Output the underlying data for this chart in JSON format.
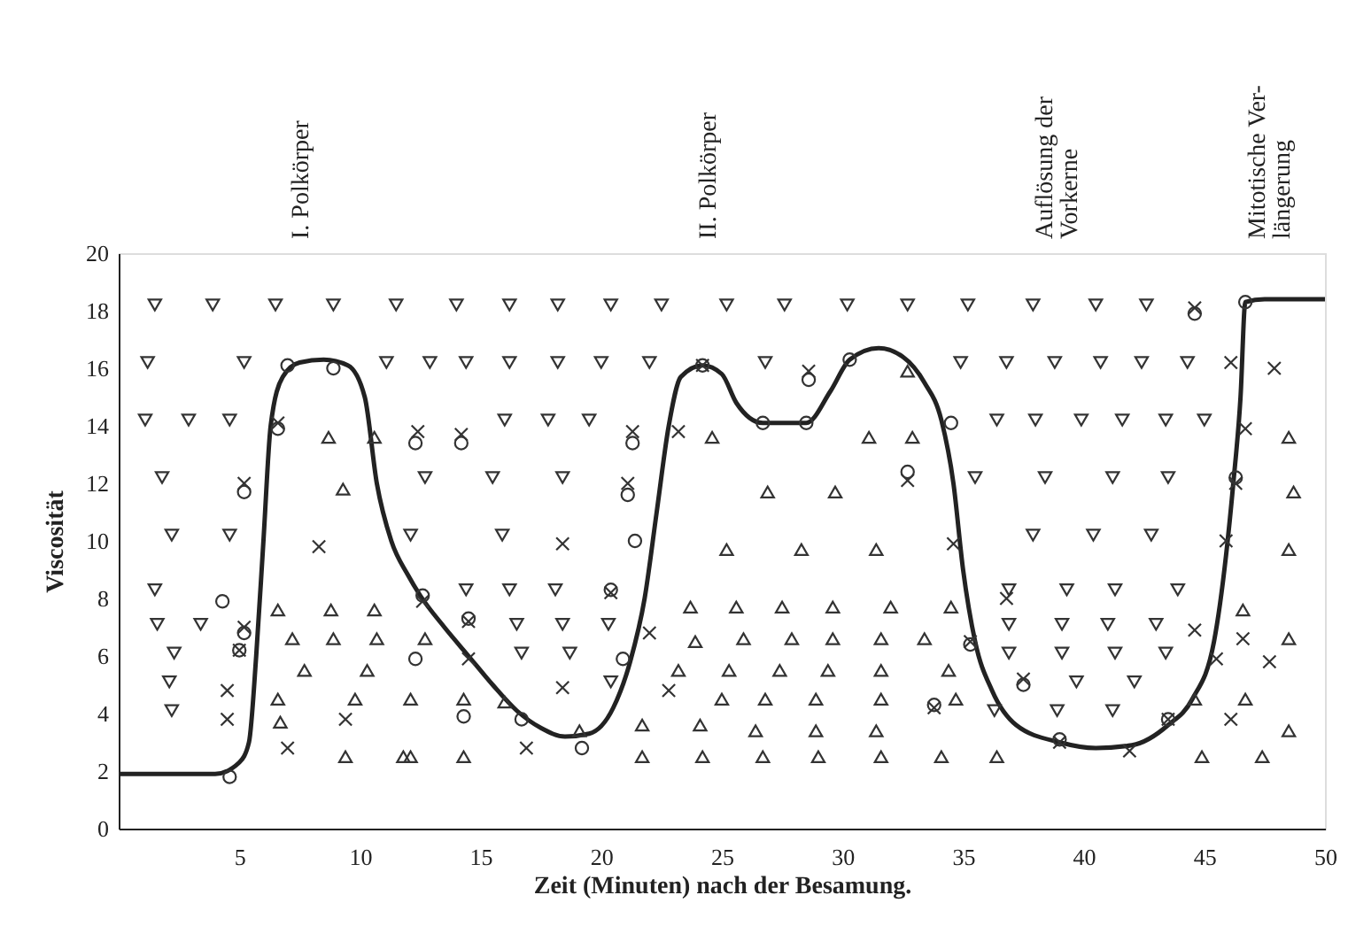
{
  "chart_data": {
    "type": "scatter",
    "xlabel": "Zeit (Minuten) nach der Besamung.",
    "ylabel": "Viscosität",
    "xlim": [
      0,
      50
    ],
    "xticks": [
      5,
      10,
      15,
      20,
      25,
      30,
      35,
      40,
      45,
      50
    ],
    "ylim": [
      0,
      20
    ],
    "yticks": [
      0,
      2,
      4,
      6,
      8,
      10,
      12,
      14,
      16,
      18,
      20
    ],
    "grid": false,
    "annotations": [
      "I. Polkörper",
      "II. Polkörper",
      "Auflösung der\nVorkerne",
      "Mitotische Ver-\nlängerung"
    ],
    "series": [
      {
        "type": "line",
        "color": "#222222",
        "marker": "none",
        "line_style": "solid",
        "x": [
          0,
          4,
          5,
          5.4,
          5.7,
          6.0,
          6.3,
          6.8,
          7.5,
          8.5,
          9.5,
          10.2,
          10.7,
          11.3,
          12.0,
          12.5,
          13.5,
          14.5,
          15.5,
          16.5,
          17.5,
          18.5,
          19.5,
          20.5,
          21.2,
          21.8,
          22.3,
          22.8,
          23.3,
          24.2,
          25,
          25.6,
          26.7,
          28.5,
          29.5,
          30.3,
          31.5,
          32.5,
          33.4,
          34.1,
          34.6,
          35,
          35.5,
          36.2,
          37.2,
          39,
          40.5,
          42,
          43.5,
          44.5,
          45.4,
          45.9,
          46.2,
          46.5,
          46.7,
          47.5,
          50
        ],
        "values": [
          1.9,
          1.9,
          2.3,
          3,
          6,
          10,
          14,
          15.7,
          16.2,
          16.3,
          16.1,
          15,
          12,
          10,
          8.8,
          8.1,
          7,
          6,
          5,
          4.1,
          3.5,
          3.2,
          3.3,
          4.2,
          5.8,
          8,
          11,
          14,
          15.7,
          16.1,
          15.8,
          14.8,
          14.1,
          14.1,
          15.2,
          16.3,
          16.7,
          16.4,
          15.5,
          14.2,
          12,
          9,
          6.5,
          4.8,
          3.6,
          3.0,
          2.8,
          2.9,
          3.6,
          4.5,
          6.5,
          9.5,
          12,
          15,
          18.3,
          18.4,
          18.4
        ]
      },
      {
        "color": "#333333",
        "marker": "triangle-down",
        "x": [
          1.5,
          3.9,
          6.5,
          8.9,
          11.5,
          14.0,
          16.2,
          18.2,
          20.4,
          22.5,
          25.2,
          27.6,
          30.2,
          32.7,
          35.2,
          37.9,
          40.5,
          42.6,
          1.2,
          5.2,
          11.1,
          12.9,
          14.4,
          16.2,
          18.2,
          20.0,
          22.0,
          26.8,
          34.9,
          36.8,
          38.8,
          40.7,
          42.4,
          44.3,
          1.1,
          2.9,
          4.6,
          16.0,
          17.8,
          19.5,
          36.4,
          38.0,
          39.9,
          41.6,
          43.4,
          45.0,
          1.8,
          12.7,
          15.5,
          18.4,
          35.5,
          38.4,
          41.2,
          43.5,
          2.2,
          4.6,
          12.1,
          15.9,
          37.9,
          40.4,
          42.8,
          1.5,
          14.4,
          16.2,
          18.1,
          36.9,
          39.3,
          41.3,
          43.9,
          1.6,
          3.4,
          16.5,
          18.4,
          20.3,
          36.9,
          39.1,
          41.0,
          43.0,
          2.3,
          16.7,
          18.7,
          36.9,
          39.1,
          41.3,
          43.4,
          2.1,
          20.4,
          39.7,
          42.1,
          2.2,
          36.3,
          38.9,
          41.2
        ],
        "values": [
          18.2,
          18.2,
          18.2,
          18.2,
          18.2,
          18.2,
          18.2,
          18.2,
          18.2,
          18.2,
          18.2,
          18.2,
          18.2,
          18.2,
          18.2,
          18.2,
          18.2,
          18.2,
          16.2,
          16.2,
          16.2,
          16.2,
          16.2,
          16.2,
          16.2,
          16.2,
          16.2,
          16.2,
          16.2,
          16.2,
          16.2,
          16.2,
          16.2,
          16.2,
          14.2,
          14.2,
          14.2,
          14.2,
          14.2,
          14.2,
          14.2,
          14.2,
          14.2,
          14.2,
          14.2,
          14.2,
          12.2,
          12.2,
          12.2,
          12.2,
          12.2,
          12.2,
          12.2,
          12.2,
          10.2,
          10.2,
          10.2,
          10.2,
          10.2,
          10.2,
          10.2,
          8.3,
          8.3,
          8.3,
          8.3,
          8.3,
          8.3,
          8.3,
          8.3,
          7.1,
          7.1,
          7.1,
          7.1,
          7.1,
          7.1,
          7.1,
          7.1,
          7.1,
          6.1,
          6.1,
          6.1,
          6.1,
          6.1,
          6.1,
          6.1,
          5.1,
          5.1,
          5.1,
          5.1,
          4.1,
          4.1,
          4.1,
          4.1
        ]
      },
      {
        "color": "#333333",
        "marker": "triangle",
        "x": [
          6.6,
          8.8,
          10.6,
          7.2,
          8.9,
          10.7,
          7.7,
          10.3,
          6.6,
          9.8,
          6.7,
          9.4,
          11.8,
          8.7,
          10.6,
          24.6,
          31.1,
          32.9,
          48.5,
          32.7,
          9.3,
          26.9,
          29.7,
          48.7,
          25.2,
          28.3,
          31.4,
          48.5,
          12.7,
          23.9,
          23.7,
          23.2,
          25.0,
          12.1,
          14.3,
          16.0,
          19.1,
          21.7,
          24.1,
          14.3,
          12.1,
          21.7,
          24.2,
          25.6,
          27.5,
          29.6,
          32.0,
          34.5,
          25.9,
          27.9,
          29.6,
          31.6,
          33.4,
          25.3,
          27.4,
          29.4,
          31.6,
          34.4,
          26.8,
          28.9,
          31.6,
          34.7,
          26.4,
          28.9,
          31.4,
          26.7,
          29.0,
          31.6,
          34.1,
          36.4,
          46.6,
          48.5,
          44.6,
          46.7,
          48.5,
          44.9,
          47.4
        ],
        "values": [
          7.6,
          7.6,
          7.6,
          6.6,
          6.6,
          6.6,
          5.5,
          5.5,
          4.5,
          4.5,
          3.7,
          2.5,
          2.5,
          13.6,
          13.6,
          13.6,
          13.6,
          13.6,
          13.6,
          15.9,
          11.8,
          11.7,
          11.7,
          11.7,
          9.7,
          9.7,
          9.7,
          9.7,
          6.6,
          6.5,
          7.7,
          5.5,
          4.5,
          4.5,
          4.5,
          4.4,
          3.4,
          3.6,
          3.6,
          2.5,
          2.5,
          2.5,
          2.5,
          7.7,
          7.7,
          7.7,
          7.7,
          7.7,
          6.6,
          6.6,
          6.6,
          6.6,
          6.6,
          5.5,
          5.5,
          5.5,
          5.5,
          5.5,
          4.5,
          4.5,
          4.5,
          4.5,
          3.4,
          3.4,
          3.4,
          2.5,
          2.5,
          2.5,
          2.5,
          2.5,
          7.6,
          6.6,
          4.5,
          4.5,
          3.4,
          2.5,
          2.5
        ]
      },
      {
        "color": "#333333",
        "marker": "cross",
        "x": [
          44.6,
          46.1,
          47.9,
          28.6,
          24.2,
          6.6,
          12.4,
          14.2,
          21.3,
          23.2,
          46.7,
          5.2,
          21.1,
          32.7,
          46.3,
          8.3,
          18.4,
          34.6,
          45.9,
          5.2,
          5.0,
          4.5,
          4.5,
          9.4,
          7.0,
          12.6,
          20.4,
          14.5,
          22.0,
          14.5,
          18.4,
          22.8,
          16.9,
          36.8,
          35.3,
          37.5,
          33.8,
          44.6,
          46.6,
          45.5,
          47.7,
          43.5,
          46.1,
          39.0,
          41.9
        ],
        "values": [
          18.1,
          16.2,
          16.0,
          15.9,
          16.1,
          14.1,
          13.8,
          13.7,
          13.8,
          13.8,
          13.9,
          12.0,
          12.0,
          12.1,
          12.0,
          9.8,
          9.9,
          9.9,
          10.0,
          7.0,
          6.2,
          4.8,
          3.8,
          3.8,
          2.8,
          7.9,
          8.2,
          7.2,
          6.8,
          5.9,
          4.9,
          4.8,
          2.8,
          8.0,
          6.5,
          5.2,
          4.2,
          6.9,
          6.6,
          5.9,
          5.8,
          3.8,
          3.8,
          3.0,
          2.7
        ]
      },
      {
        "color": "#333333",
        "marker": "circle",
        "x": [
          4.6,
          7.0,
          8.9,
          4.3,
          5.2,
          5.0,
          6.6,
          5.2,
          12.3,
          12.6,
          12.3,
          14.2,
          21.3,
          21.1,
          21.4,
          20.4,
          14.5,
          20.9,
          14.3,
          16.7,
          19.2,
          24.2,
          26.7,
          28.5,
          30.3,
          34.5,
          28.6,
          32.7,
          35.3,
          37.5,
          33.8,
          39.0,
          43.5,
          46.7,
          44.6,
          46.3
        ],
        "values": [
          1.8,
          16.1,
          16.0,
          7.9,
          6.8,
          6.2,
          13.9,
          11.7,
          5.9,
          8.1,
          13.4,
          13.4,
          13.4,
          11.6,
          10.0,
          8.3,
          7.3,
          5.9,
          3.9,
          3.8,
          2.8,
          16.1,
          14.1,
          14.1,
          16.3,
          14.1,
          15.6,
          12.4,
          6.4,
          5.0,
          4.3,
          3.1,
          3.8,
          18.3,
          17.9,
          12.2
        ]
      }
    ]
  }
}
